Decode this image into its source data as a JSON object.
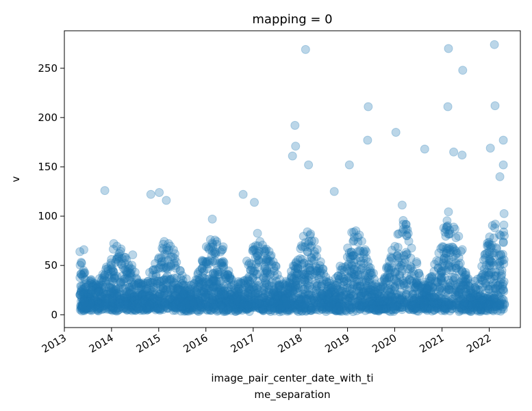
{
  "chart_data": {
    "type": "scatter",
    "title": "mapping = 0",
    "xlabel": [
      "image_pair_center_date_with_ti",
      "me_separation"
    ],
    "ylabel": "v",
    "xlim": [
      "2013-01-01",
      "2022-08-30"
    ],
    "ylim": [
      -13,
      288
    ],
    "x_ticks": [
      "2013",
      "2014",
      "2015",
      "2016",
      "2017",
      "2018",
      "2019",
      "2020",
      "2021",
      "2022"
    ],
    "y_ticks": [
      0,
      50,
      100,
      150,
      200,
      250
    ],
    "grid": false,
    "marker_color": "#1f77b4",
    "marker_alpha": 0.3,
    "notable_points": [
      {
        "x": "2013-05-01",
        "y": 64
      },
      {
        "x": "2013-06-01",
        "y": 66
      },
      {
        "x": "2013-11-10",
        "y": 126
      },
      {
        "x": "2014-11-01",
        "y": 122
      },
      {
        "x": "2015-01-05",
        "y": 124
      },
      {
        "x": "2015-03-01",
        "y": 116
      },
      {
        "x": "2016-02-20",
        "y": 97
      },
      {
        "x": "2016-10-15",
        "y": 122
      },
      {
        "x": "2017-01-10",
        "y": 114
      },
      {
        "x": "2017-11-01",
        "y": 161
      },
      {
        "x": "2017-11-20",
        "y": 192
      },
      {
        "x": "2017-11-25",
        "y": 171
      },
      {
        "x": "2018-02-10",
        "y": 269
      },
      {
        "x": "2018-03-05",
        "y": 152
      },
      {
        "x": "2018-09-20",
        "y": 125
      },
      {
        "x": "2019-01-15",
        "y": 152
      },
      {
        "x": "2019-06-10",
        "y": 211
      },
      {
        "x": "2019-06-05",
        "y": 177
      },
      {
        "x": "2020-01-10",
        "y": 185
      },
      {
        "x": "2020-08-20",
        "y": 168
      },
      {
        "x": "2021-02-20",
        "y": 270
      },
      {
        "x": "2021-02-15",
        "y": 211
      },
      {
        "x": "2021-06-10",
        "y": 248
      },
      {
        "x": "2021-04-01",
        "y": 165
      },
      {
        "x": "2021-06-05",
        "y": 162
      },
      {
        "x": "2022-02-10",
        "y": 274
      },
      {
        "x": "2022-02-15",
        "y": 212
      },
      {
        "x": "2022-04-20",
        "y": 177
      },
      {
        "x": "2022-01-10",
        "y": 169
      },
      {
        "x": "2022-04-20",
        "y": 152
      }
    ],
    "dense_band_note": "Several thousand points concentrated between 0 and about 60, with seasonal peaks each year"
  }
}
